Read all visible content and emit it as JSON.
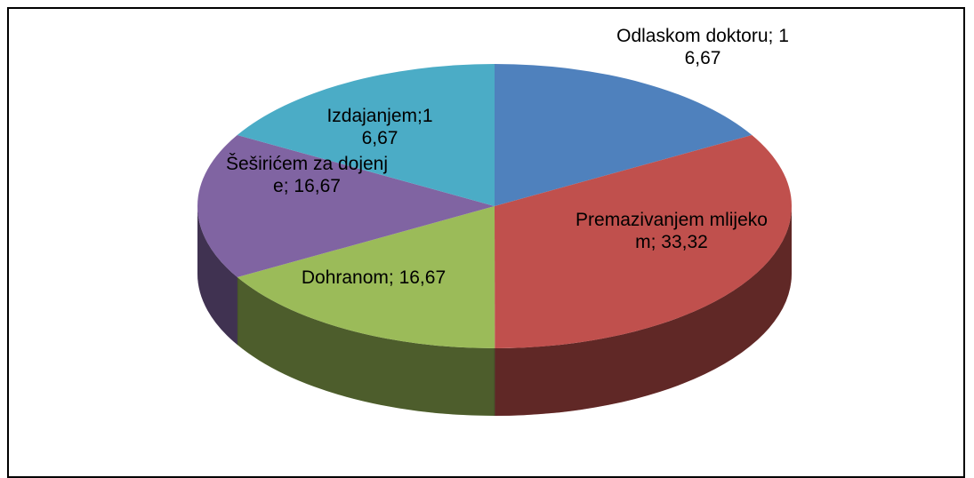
{
  "chart_data": {
    "type": "pie3d",
    "values": [
      16.67,
      33.32,
      16.67,
      16.67,
      16.67
    ],
    "value_labels": [
      "Odlaskom doktoru; 16,67",
      "Premazivanjem mlijekom; 33,32",
      "Dohranom; 16,67",
      "Šeširićem za dojenje; 16,67",
      "Izdajanjem;16,67"
    ],
    "colors": [
      "#4f81bd",
      "#c0504d",
      "#9bbb59",
      "#8064a2",
      "#4bacc6"
    ]
  }
}
